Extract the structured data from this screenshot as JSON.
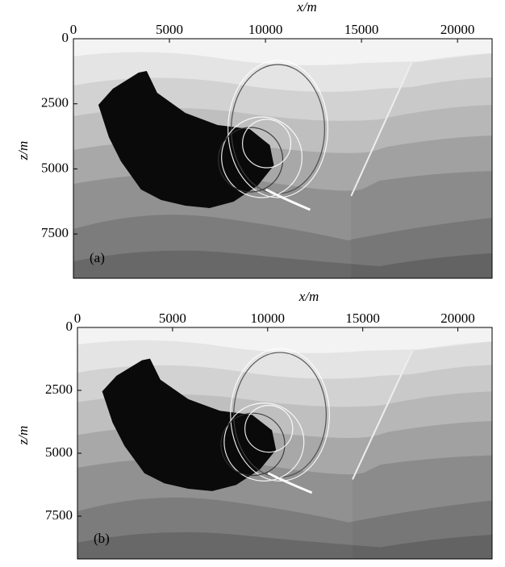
{
  "chart_data": [
    {
      "type": "image",
      "panel_label": "(a)",
      "xlabel": "x/m",
      "ylabel": "z/m",
      "xlim": [
        0,
        21800
      ],
      "ylim": [
        0,
        9200
      ],
      "xticks": [
        0,
        5000,
        10000,
        15000,
        20000
      ],
      "yticks": [
        0,
        2500,
        5000,
        7500
      ]
    },
    {
      "type": "image",
      "panel_label": "(b)",
      "xlabel": "x/m",
      "ylabel": "z/m",
      "xlim": [
        0,
        21800
      ],
      "ylim": [
        0,
        9200
      ],
      "xticks": [
        0,
        5000,
        10000,
        15000,
        20000
      ],
      "yticks": [
        0,
        2500,
        5000,
        7500
      ]
    }
  ]
}
